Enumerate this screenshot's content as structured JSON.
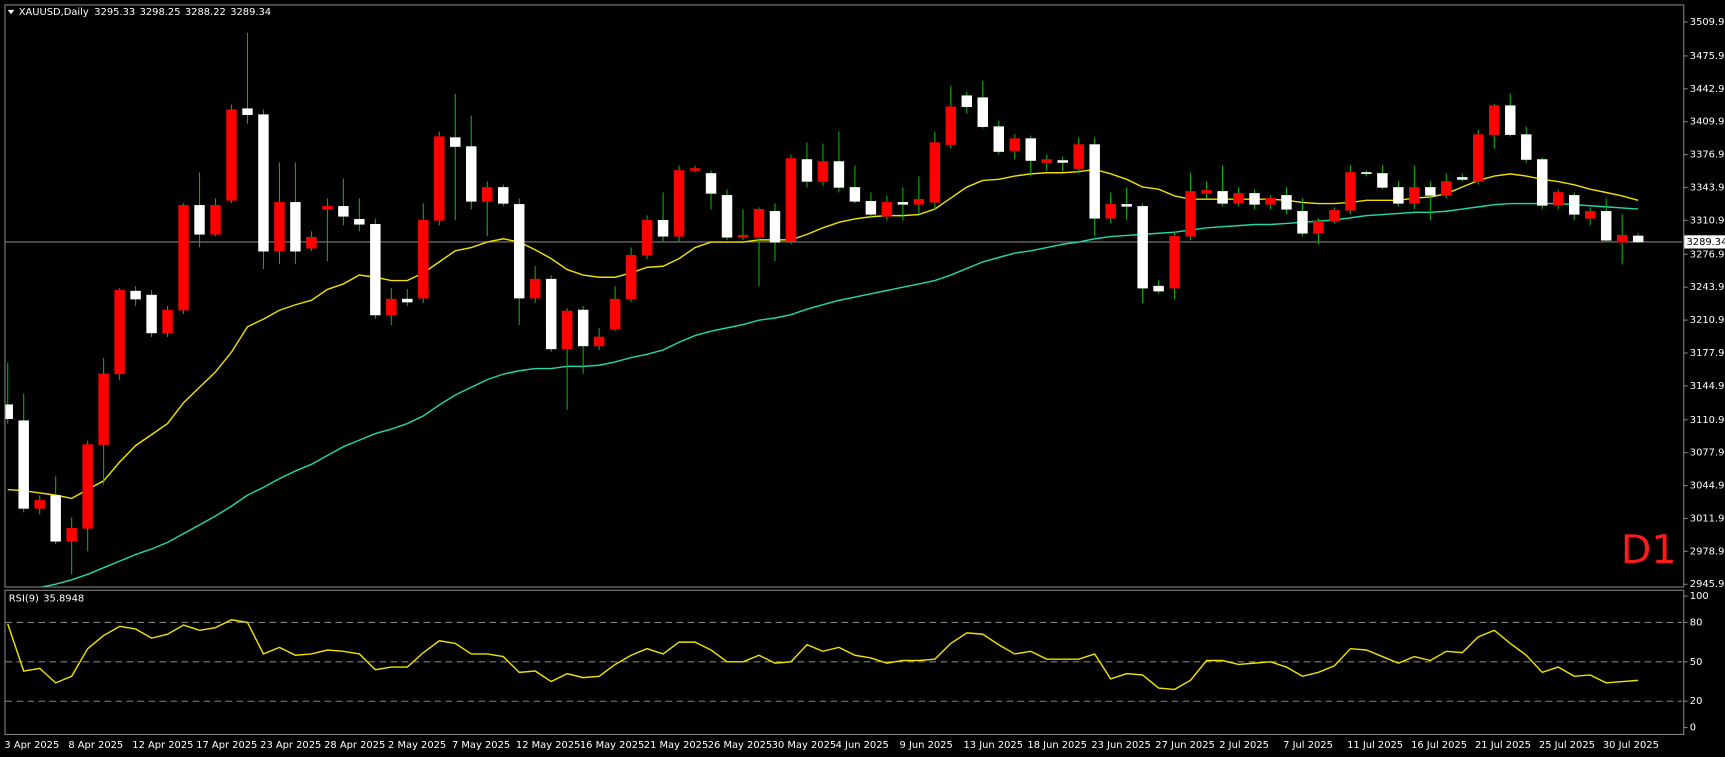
{
  "chart_data": [
    {
      "type": "candlestick",
      "title": "XAUUSD,Daily",
      "timeframe_label": "D1",
      "annotation_color": "#ff1a1a",
      "up_color": "#ff0000",
      "down_color": "#ffffff",
      "wick_color": "#00b400",
      "price_line_color": "#808080",
      "categories": [
        "3 Apr 2025",
        null,
        null,
        null,
        "8 Apr 2025",
        null,
        null,
        null,
        "12 Apr 2025",
        null,
        null,
        null,
        "17 Apr 2025",
        null,
        null,
        null,
        "23 Apr 2025",
        null,
        null,
        null,
        "28 Apr 2025",
        null,
        null,
        null,
        "2 May 2025",
        null,
        null,
        null,
        "7 May 2025",
        null,
        null,
        null,
        "12 May 2025",
        null,
        null,
        null,
        "16 May 2025",
        null,
        null,
        null,
        "21 May 2025",
        null,
        null,
        null,
        "26 May 2025",
        null,
        null,
        null,
        "30 May 2025",
        null,
        null,
        null,
        "4 Jun 2025",
        null,
        null,
        null,
        "9 Jun 2025",
        null,
        null,
        null,
        "13 Jun 2025",
        null,
        null,
        null,
        "18 Jun 2025",
        null,
        null,
        null,
        "23 Jun 2025",
        null,
        null,
        null,
        "27 Jun 2025",
        null,
        null,
        null,
        "2 Jul 2025",
        null,
        null,
        null,
        "7 Jul 2025",
        null,
        null,
        null,
        "11 Jul 2025",
        null,
        null,
        null,
        "16 Jul 2025",
        null,
        null,
        null,
        "21 Jul 2025",
        null,
        null,
        null,
        "25 Jul 2025",
        null,
        null,
        null,
        "30 Jul 2025",
        null,
        null
      ],
      "open": [
        3126,
        3110,
        3022,
        3035,
        2989,
        3002,
        3086,
        3157,
        3240,
        3236,
        3198,
        3221,
        3326,
        3297,
        3331,
        3423,
        3417,
        3280,
        3329,
        3283,
        3322,
        3325,
        3312,
        3307,
        3216,
        3232,
        3233,
        3311,
        3394,
        3385,
        3330,
        3344,
        3327,
        3233,
        3252,
        3182,
        3221,
        3185,
        3202,
        3232,
        3276,
        3311,
        3295,
        3361,
        3358,
        3336,
        3294,
        3294,
        3320,
        3290,
        3372,
        3350,
        3370,
        3344,
        3330,
        3315,
        3329,
        3327,
        3329,
        3387,
        3436,
        3434,
        3405,
        3381,
        3393,
        3369,
        3371,
        3363,
        3387,
        3313,
        3327,
        3325,
        3245,
        3243,
        3295,
        3338,
        3340,
        3328,
        3338,
        3327,
        3336,
        3320,
        3298,
        3310,
        3321,
        3359,
        3358,
        3344,
        3328,
        3344,
        3336,
        3354,
        3350,
        3397,
        3426,
        3397,
        3372,
        3326,
        3336,
        3313,
        3320,
        3289,
        3295.33
      ],
      "high": [
        3168,
        3137,
        3035,
        3054,
        3013,
        3090,
        3173,
        3243,
        3245,
        3241,
        3225,
        3328,
        3359,
        3333,
        3427,
        3499,
        3422,
        3369,
        3369,
        3300,
        3333,
        3353,
        3333,
        3313,
        3243,
        3242,
        3328,
        3400,
        3438,
        3416,
        3350,
        3347,
        3333,
        3265,
        3256,
        3223,
        3225,
        3203,
        3245,
        3284,
        3316,
        3339,
        3366,
        3366,
        3361,
        3342,
        3322,
        3324,
        3328,
        3377,
        3389,
        3388,
        3400,
        3366,
        3339,
        3336,
        3344,
        3355,
        3400,
        3446,
        3440,
        3451,
        3411,
        3397,
        3396,
        3377,
        3375,
        3394,
        3394,
        3339,
        3344,
        3328,
        3251,
        3300,
        3359,
        3350,
        3366,
        3344,
        3342,
        3336,
        3344,
        3333,
        3313,
        3324,
        3366,
        3361,
        3366,
        3350,
        3366,
        3350,
        3358,
        3358,
        3402,
        3428,
        3438,
        3405,
        3374,
        3342,
        3339,
        3324,
        3333,
        3317,
        3298.25
      ],
      "low": [
        3107,
        3018,
        3016,
        2986,
        2956,
        2979,
        3046,
        3151,
        3225,
        3194,
        3194,
        3217,
        3284,
        3295,
        3328,
        3408,
        3262,
        3267,
        3267,
        3280,
        3270,
        3306,
        3300,
        3212,
        3206,
        3225,
        3228,
        3306,
        3311,
        3322,
        3295,
        3325,
        3206,
        3228,
        3179,
        3121,
        3157,
        3181,
        3200,
        3229,
        3272,
        3289,
        3289,
        3359,
        3322,
        3291,
        3291,
        3245,
        3270,
        3287,
        3344,
        3346,
        3339,
        3328,
        3313,
        3311,
        3311,
        3317,
        3322,
        3383,
        3418,
        3403,
        3377,
        3372,
        3355,
        3361,
        3360,
        3358,
        3295,
        3308,
        3311,
        3228,
        3237,
        3232,
        3291,
        3333,
        3325,
        3325,
        3322,
        3322,
        3317,
        3295,
        3287,
        3308,
        3317,
        3355,
        3342,
        3325,
        3322,
        3311,
        3333,
        3350,
        3347,
        3383,
        3395,
        3369,
        3322,
        3322,
        3311,
        3306,
        3289,
        3267,
        3288.22
      ],
      "close": [
        3112,
        3022,
        3030,
        2989,
        3002,
        3086,
        3157,
        3241,
        3232,
        3198,
        3221,
        3326,
        3297,
        3326,
        3422,
        3417,
        3280,
        3329,
        3280,
        3294,
        3325,
        3315,
        3307,
        3216,
        3232,
        3229,
        3311,
        3395,
        3385,
        3330,
        3344,
        3328,
        3233,
        3252,
        3182,
        3220,
        3185,
        3194,
        3232,
        3276,
        3311,
        3295,
        3361,
        3363,
        3338,
        3294,
        3296,
        3322,
        3289,
        3373,
        3350,
        3370,
        3344,
        3330,
        3317,
        3329,
        3327,
        3332,
        3389,
        3425,
        3425,
        3405,
        3380,
        3393,
        3371,
        3372,
        3369,
        3387,
        3313,
        3327,
        3325,
        3243,
        3240,
        3295,
        3340,
        3341,
        3328,
        3338,
        3327,
        3333,
        3322,
        3298,
        3310,
        3321,
        3359,
        3358,
        3344,
        3328,
        3344,
        3336,
        3350,
        3352,
        3397,
        3426,
        3397,
        3372,
        3326,
        3339,
        3317,
        3320,
        3291,
        3296,
        3289.34
      ],
      "series": [
        {
          "color": "#f0e000",
          "values": [
            3040.9,
            3039.8,
            3037.5,
            3035.3,
            3032.0,
            3040.9,
            3049.7,
            3068.4,
            3085.0,
            3096.0,
            3107.1,
            3128.0,
            3143.5,
            3158.9,
            3178.8,
            3204.2,
            3211.9,
            3220.8,
            3226.3,
            3230.7,
            3241.7,
            3247.2,
            3256.1,
            3253.9,
            3250.6,
            3250.6,
            3258.3,
            3269.3,
            3280.4,
            3283.7,
            3289.2,
            3292.5,
            3289.2,
            3281.5,
            3272.6,
            3261.6,
            3256.1,
            3253.9,
            3253.9,
            3258.3,
            3263.8,
            3264.9,
            3272.6,
            3283.7,
            3289.2,
            3289.2,
            3289.2,
            3291.4,
            3291.4,
            3291.4,
            3296.9,
            3303.5,
            3309.0,
            3312.4,
            3314.6,
            3315.7,
            3315.7,
            3316.8,
            3322.3,
            3333.3,
            3344.4,
            3351.0,
            3352.1,
            3355.4,
            3357.6,
            3358.7,
            3358.7,
            3359.8,
            3362.0,
            3357.6,
            3352.1,
            3344.4,
            3342.2,
            3335.5,
            3332.2,
            3332.2,
            3332.2,
            3332.2,
            3332.2,
            3332.2,
            3331.1,
            3328.9,
            3327.8,
            3327.8,
            3328.9,
            3331.1,
            3331.1,
            3331.1,
            3333.3,
            3334.4,
            3337.7,
            3344.4,
            3351.0,
            3355.4,
            3357.6,
            3355.4,
            3352.1,
            3349.9,
            3346.6,
            3342.2,
            3338.9,
            3335.5,
            3331.1
          ]
        },
        {
          "color": "#22d8a8",
          "values": [
            2937,
            2940,
            2942.7,
            2946.0,
            2950.4,
            2955.9,
            2962.5,
            2969.1,
            2975.7,
            2981.3,
            2987.9,
            2996.7,
            3005.5,
            3014.4,
            3024.3,
            3035.3,
            3043.1,
            3051.9,
            3059.6,
            3066.2,
            3075.1,
            3083.9,
            3090.5,
            3097.1,
            3101.6,
            3107.1,
            3114.8,
            3125.8,
            3135.8,
            3143.5,
            3151.2,
            3156.7,
            3160.1,
            3162.3,
            3162.3,
            3164.5,
            3164.5,
            3165.6,
            3168.9,
            3173.3,
            3176.6,
            3181.0,
            3188.7,
            3195.4,
            3199.8,
            3203.1,
            3206.4,
            3210.8,
            3213.0,
            3216.3,
            3221.9,
            3226.3,
            3230.7,
            3234.0,
            3237.3,
            3240.6,
            3243.9,
            3247.2,
            3250.6,
            3256.1,
            3262.7,
            3269.3,
            3273.7,
            3278.1,
            3280.4,
            3283.7,
            3287.0,
            3289.2,
            3292.5,
            3294.7,
            3295.8,
            3296.9,
            3298.0,
            3299.1,
            3301.3,
            3303.5,
            3304.6,
            3305.7,
            3306.8,
            3306.8,
            3307.9,
            3309.0,
            3310.2,
            3311.3,
            3313.5,
            3315.7,
            3316.8,
            3317.9,
            3319.0,
            3319.0,
            3320.1,
            3322.3,
            3324.5,
            3326.7,
            3327.8,
            3327.8,
            3327.8,
            3327.8,
            3326.7,
            3325.6,
            3324.5,
            3323.4,
            3322.3
          ]
        }
      ],
      "ylim": [
        2943.7,
        3526.5
      ],
      "yticks": [
        {
          "value": 2945.9,
          "label": "2945.90"
        },
        {
          "value": 2978.9,
          "label": "2978.90"
        },
        {
          "value": 3011.9,
          "label": "3011.90"
        },
        {
          "value": 3044.9,
          "label": "3044.90"
        },
        {
          "value": 3077.9,
          "label": "3077.90"
        },
        {
          "value": 3110.9,
          "label": "3110.90"
        },
        {
          "value": 3144.9,
          "label": "3144.90"
        },
        {
          "value": 3177.9,
          "label": "3177.90"
        },
        {
          "value": 3210.9,
          "label": "3210.90"
        },
        {
          "value": 3243.9,
          "label": "3243.90"
        },
        {
          "value": 3276.9,
          "label": "3276.90"
        },
        {
          "value": 3310.9,
          "label": "3310.90"
        },
        {
          "value": 3343.9,
          "label": "3343.90"
        },
        {
          "value": 3376.9,
          "label": "3376.90"
        },
        {
          "value": 3409.9,
          "label": "3409.90"
        },
        {
          "value": 3442.9,
          "label": "3442.90"
        },
        {
          "value": 3475.9,
          "label": "3475.90"
        },
        {
          "value": 3509.9,
          "label": "3509.90"
        }
      ]
    },
    {
      "type": "line",
      "title": "RSI(9)",
      "series": [
        {
          "color": "#f0e000",
          "values": [
            79,
            43,
            45,
            34,
            39,
            60,
            70,
            77,
            75,
            68,
            71,
            78,
            74,
            76,
            82,
            80,
            56,
            61,
            55,
            56,
            59,
            58,
            56,
            44,
            46,
            46,
            57,
            66,
            64,
            56,
            56,
            54,
            42,
            43,
            35,
            41,
            38,
            39,
            48,
            55,
            60,
            56,
            65,
            65,
            59,
            50,
            50,
            55,
            49,
            50,
            63,
            58,
            61,
            55,
            53,
            49,
            51,
            51,
            52,
            64,
            72,
            71,
            63,
            56,
            58,
            52,
            52,
            52,
            56,
            37,
            41,
            40,
            30,
            29,
            36,
            51,
            51,
            48,
            49,
            50,
            46,
            39,
            42,
            47,
            60,
            59,
            54,
            49,
            54,
            51,
            58,
            57,
            69,
            74,
            64,
            55,
            42,
            46,
            39,
            40,
            34,
            35,
            35.8948
          ]
        }
      ],
      "ylim": [
        -4,
        104
      ],
      "yticks": [
        0,
        20,
        50,
        80,
        100
      ],
      "levels": [
        20,
        50,
        80
      ],
      "level_color": "#808080"
    }
  ]
}
